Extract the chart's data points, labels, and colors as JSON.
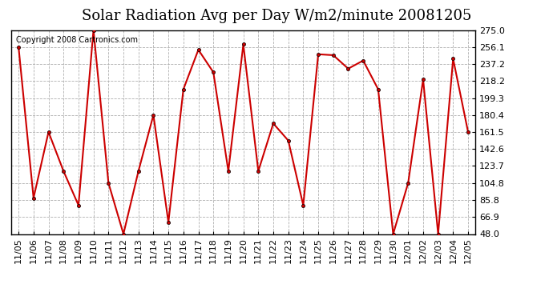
{
  "title": "Solar Radiation Avg per Day W/m2/minute 20081205",
  "copyright": "Copyright 2008 Cartronics.com",
  "labels": [
    "11/05",
    "11/06",
    "11/07",
    "11/08",
    "11/09",
    "11/10",
    "11/11",
    "11/12",
    "11/13",
    "11/14",
    "11/15",
    "11/16",
    "11/17",
    "11/18",
    "11/19",
    "11/20",
    "11/21",
    "11/22",
    "11/23",
    "11/24",
    "11/25",
    "11/26",
    "11/27",
    "11/28",
    "11/29",
    "11/30",
    "12/01",
    "12/02",
    "12/03",
    "12/04",
    "12/05"
  ],
  "values": [
    256.1,
    88.0,
    161.5,
    118.0,
    80.0,
    275.0,
    104.8,
    48.0,
    118.0,
    180.4,
    61.0,
    209.0,
    253.0,
    228.0,
    118.0,
    259.0,
    118.0,
    171.0,
    152.0,
    80.0,
    248.0,
    247.0,
    232.0,
    241.0,
    209.0,
    48.0,
    104.8,
    220.0,
    48.0,
    243.0,
    161.5
  ],
  "line_color": "#cc0000",
  "bg_color": "#ffffff",
  "plot_bg_color": "#ffffff",
  "grid_color": "#b0b0b0",
  "ymin": 48.0,
  "ymax": 275.0,
  "yticks": [
    48.0,
    66.9,
    85.8,
    104.8,
    123.7,
    142.6,
    161.5,
    180.4,
    199.3,
    218.2,
    237.2,
    256.1,
    275.0
  ],
  "title_fontsize": 13,
  "tick_fontsize": 8,
  "copyright_fontsize": 7
}
